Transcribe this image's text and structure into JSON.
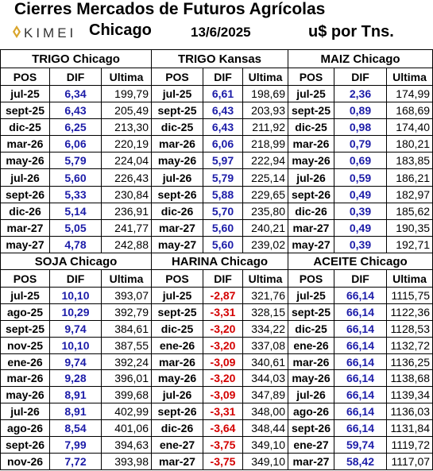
{
  "header": {
    "title": "Cierres Mercados de Futuros Agrícolas",
    "logo": "KIMEI",
    "market": "Chicago",
    "date": "13/6/2025",
    "unit": "u$ por Tns."
  },
  "panels": [
    {
      "title": "TRIGO Chicago",
      "columns": [
        "POS",
        "DIF",
        "Ultima"
      ],
      "rows": [
        [
          "jul-25",
          "6,34",
          "199,79"
        ],
        [
          "sept-25",
          "6,43",
          "205,49"
        ],
        [
          "dic-25",
          "6,25",
          "213,30"
        ],
        [
          "mar-26",
          "6,06",
          "220,19"
        ],
        [
          "may-26",
          "5,79",
          "224,04"
        ],
        [
          "jul-26",
          "5,60",
          "226,43"
        ],
        [
          "sept-26",
          "5,33",
          "230,84"
        ],
        [
          "dic-26",
          "5,14",
          "236,91"
        ],
        [
          "mar-27",
          "5,05",
          "241,77"
        ],
        [
          "may-27",
          "4,78",
          "242,88"
        ]
      ]
    },
    {
      "title": "TRIGO Kansas",
      "columns": [
        "POS",
        "DIF",
        "Ultima"
      ],
      "rows": [
        [
          "jul-25",
          "6,61",
          "198,69"
        ],
        [
          "sept-25",
          "6,43",
          "203,93"
        ],
        [
          "dic-25",
          "6,43",
          "211,92"
        ],
        [
          "mar-26",
          "6,06",
          "218,99"
        ],
        [
          "may-26",
          "5,97",
          "222,94"
        ],
        [
          "jul-26",
          "5,79",
          "225,14"
        ],
        [
          "sept-26",
          "5,88",
          "229,65"
        ],
        [
          "dic-26",
          "5,70",
          "235,80"
        ],
        [
          "mar-27",
          "5,60",
          "240,21"
        ],
        [
          "may-27",
          "5,60",
          "239,02"
        ]
      ]
    },
    {
      "title": "MAIZ Chicago",
      "columns": [
        "POS",
        "DIF",
        "Ultima"
      ],
      "rows": [
        [
          "jul-25",
          "2,36",
          "174,99"
        ],
        [
          "sept-25",
          "0,89",
          "168,69"
        ],
        [
          "dic-25",
          "0,98",
          "174,40"
        ],
        [
          "mar-26",
          "0,79",
          "180,21"
        ],
        [
          "may-26",
          "0,69",
          "183,85"
        ],
        [
          "jul-26",
          "0,59",
          "186,21"
        ],
        [
          "sept-26",
          "0,49",
          "182,97"
        ],
        [
          "dic-26",
          "0,39",
          "185,62"
        ],
        [
          "mar-27",
          "0,49",
          "190,35"
        ],
        [
          "may-27",
          "0,39",
          "192,71"
        ]
      ]
    },
    {
      "title": "SOJA Chicago",
      "columns": [
        "POS",
        "DIF",
        "Ultima"
      ],
      "rows": [
        [
          "jul-25",
          "10,10",
          "393,07"
        ],
        [
          "ago-25",
          "10,29",
          "392,79"
        ],
        [
          "sept-25",
          "9,74",
          "384,61"
        ],
        [
          "nov-25",
          "10,10",
          "387,55"
        ],
        [
          "ene-26",
          "9,74",
          "392,24"
        ],
        [
          "mar-26",
          "9,28",
          "396,01"
        ],
        [
          "may-26",
          "8,91",
          "399,68"
        ],
        [
          "jul-26",
          "8,91",
          "402,99"
        ],
        [
          "ago-26",
          "8,54",
          "401,06"
        ],
        [
          "sept-26",
          "7,99",
          "394,63"
        ],
        [
          "nov-26",
          "7,72",
          "393,98"
        ]
      ]
    },
    {
      "title": "HARINA Chicago",
      "columns": [
        "POS",
        "DIF",
        "Ultima"
      ],
      "rows": [
        [
          "jul-25",
          "-2,87",
          "321,76"
        ],
        [
          "sept-25",
          "-3,31",
          "328,15"
        ],
        [
          "dic-25",
          "-3,20",
          "334,22"
        ],
        [
          "ene-26",
          "-3,20",
          "337,08"
        ],
        [
          "mar-26",
          "-3,09",
          "340,61"
        ],
        [
          "may-26",
          "-3,20",
          "344,03"
        ],
        [
          "jul-26",
          "-3,09",
          "347,89"
        ],
        [
          "sept-26",
          "-3,31",
          "348,00"
        ],
        [
          "dic-26",
          "-3,64",
          "348,44"
        ],
        [
          "ene-27",
          "-3,75",
          "349,10"
        ],
        [
          "mar-27",
          "-3,75",
          "349,10"
        ]
      ]
    },
    {
      "title": "ACEITE Chicago",
      "columns": [
        "POS",
        "DIF",
        "Ultima"
      ],
      "rows": [
        [
          "jul-25",
          "66,14",
          "1115,75"
        ],
        [
          "sept-25",
          "66,14",
          "1122,36"
        ],
        [
          "dic-25",
          "66,14",
          "1128,53"
        ],
        [
          "ene-26",
          "66,14",
          "1132,72"
        ],
        [
          "mar-26",
          "66,14",
          "1136,25"
        ],
        [
          "may-26",
          "66,14",
          "1138,68"
        ],
        [
          "jul-26",
          "66,14",
          "1139,34"
        ],
        [
          "ago-26",
          "66,14",
          "1136,03"
        ],
        [
          "sept-26",
          "66,14",
          "1131,84"
        ],
        [
          "ene-27",
          "59,74",
          "1119,72"
        ],
        [
          "mar-27",
          "58,42",
          "1117,07"
        ]
      ]
    }
  ]
}
